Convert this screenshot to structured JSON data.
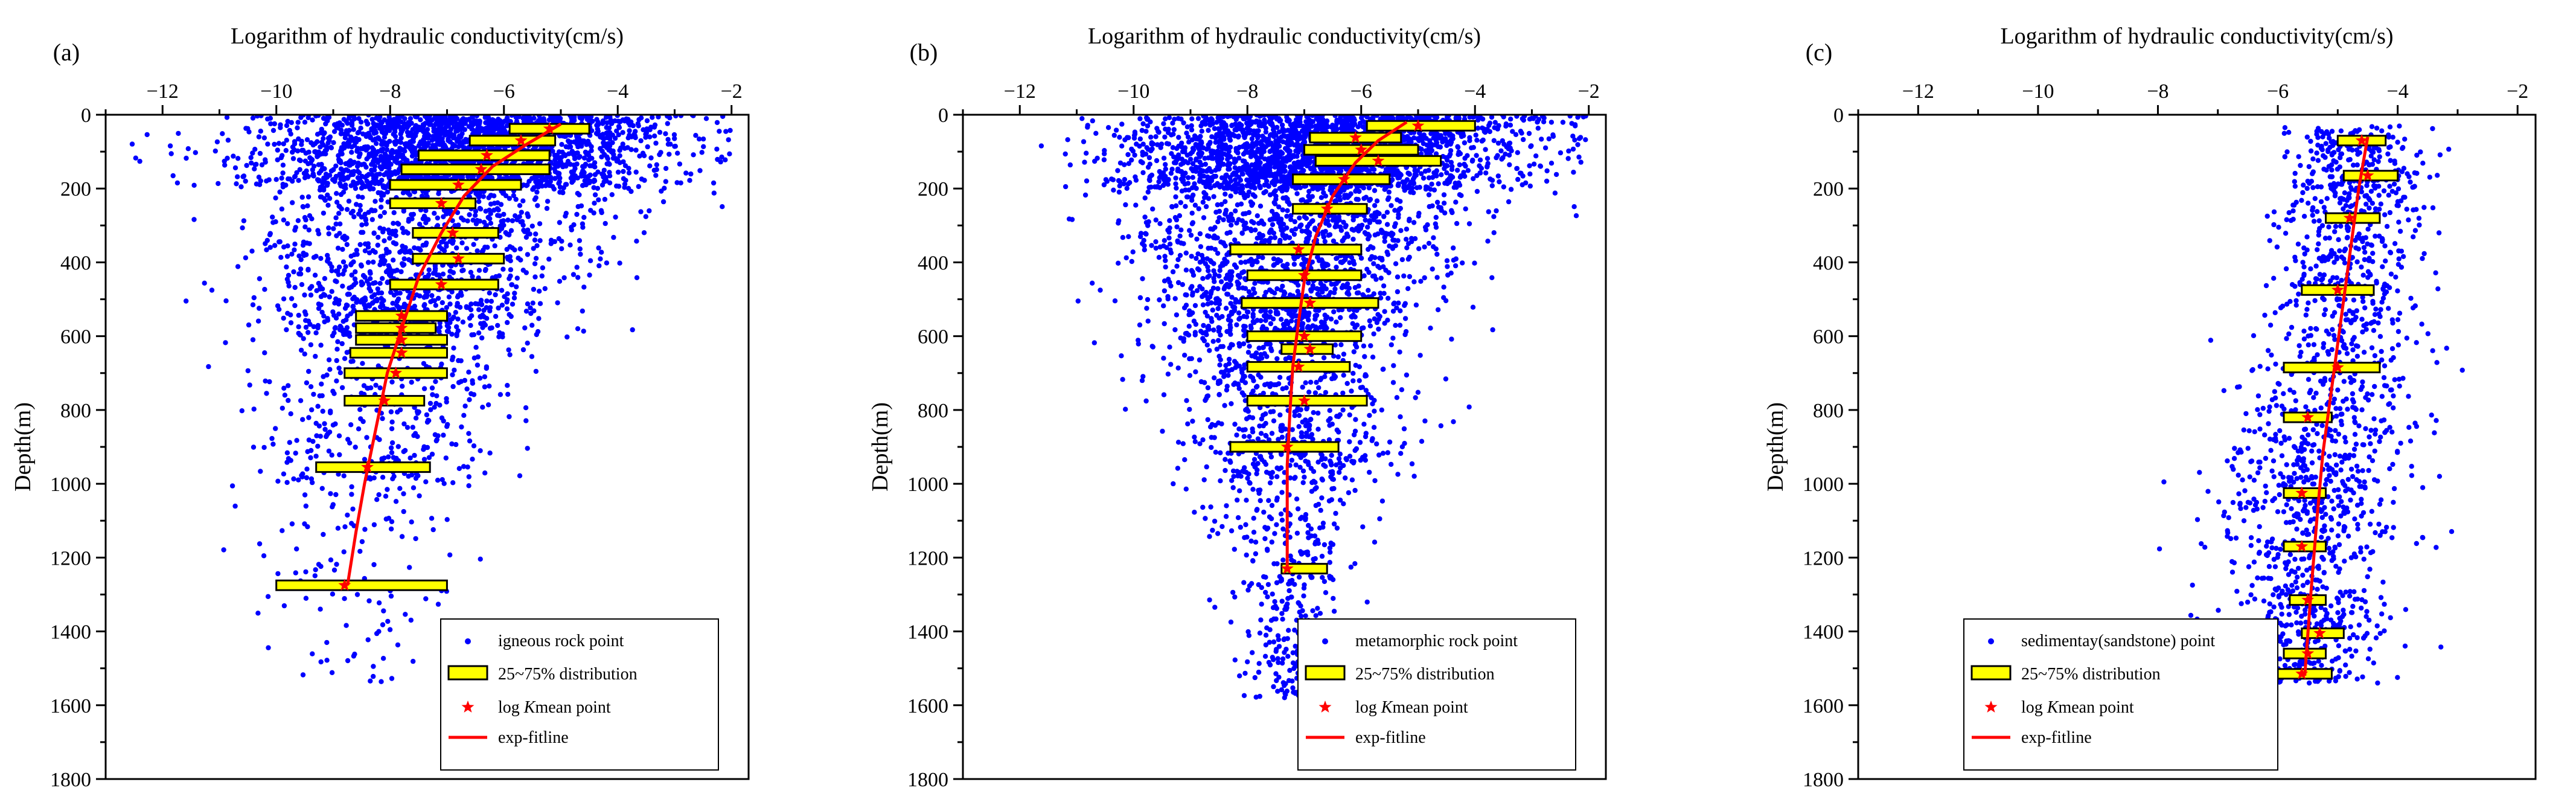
{
  "figure": {
    "panels": [
      {
        "panel_label": "(a)",
        "legend_labels": [
          "igneous rock point",
          "25~75% distribution",
          "mean point",
          "exp-fitline"
        ]
      },
      {
        "panel_label": "(b)",
        "legend_labels": [
          "metamorphic rock point",
          "25~75% distribution",
          "mean point",
          "exp-fitline"
        ]
      },
      {
        "panel_label": "(c)",
        "legend_labels": [
          "sedimentay(sandstone) point",
          "25~75% distribution",
          "mean point",
          "exp-fitline"
        ]
      }
    ],
    "legend_mean_prefix": "log ",
    "legend_mean_italic": "K"
  },
  "colors": {
    "points": "#0000ff",
    "iqr_box_fill": "#ffff00",
    "iqr_box_stroke": "#000000",
    "mean_marker": "#ff0000",
    "fit_line": "#ff0000"
  },
  "chart_data": [
    {
      "type": "scatter",
      "panel": "(a)",
      "title": "Logarithm of hydraulic conductivity(cm/s)",
      "xlabel": "Logarithm of hydraulic conductivity(cm/s)",
      "ylabel": "Depth(m)",
      "x_axis_position": "top",
      "y_axis_inverted": true,
      "xlim": [
        -13,
        -1.7
      ],
      "ylim": [
        0,
        1800
      ],
      "xticks": [
        -12,
        -10,
        -8,
        -6,
        -4,
        -2
      ],
      "yticks": [
        0,
        200,
        400,
        600,
        800,
        1000,
        1200,
        1400,
        1600,
        1800
      ],
      "legend_position": "bottom-right",
      "series": [
        {
          "name": "igneous rock point",
          "kind": "scatter",
          "note": "dense cloud of several thousand measured points, densest near the surface, spreading to about 1500 m depth",
          "profile": [
            [
              0,
              -6.5,
              1.8
            ],
            [
              200,
              -7.0,
              1.6
            ],
            [
              400,
              -7.4,
              1.4
            ],
            [
              600,
              -7.8,
              1.2
            ],
            [
              800,
              -8.0,
              1.1
            ],
            [
              1000,
              -8.3,
              1.1
            ],
            [
              1300,
              -8.5,
              1.2
            ],
            [
              1550,
              -8.5,
              1.0
            ]
          ]
        },
        {
          "name": "25~75% distribution",
          "kind": "box",
          "boxes": [
            {
              "depth": 38,
              "q1": -5.9,
              "q3": -4.5
            },
            {
              "depth": 70,
              "q1": -6.6,
              "q3": -5.1
            },
            {
              "depth": 110,
              "q1": -7.5,
              "q3": -5.2
            },
            {
              "depth": 148,
              "q1": -7.8,
              "q3": -5.2
            },
            {
              "depth": 190,
              "q1": -8.0,
              "q3": -5.7
            },
            {
              "depth": 240,
              "q1": -8.0,
              "q3": -6.5
            },
            {
              "depth": 320,
              "q1": -7.6,
              "q3": -6.1
            },
            {
              "depth": 390,
              "q1": -7.6,
              "q3": -6.0
            },
            {
              "depth": 460,
              "q1": -8.0,
              "q3": -6.1
            },
            {
              "depth": 545,
              "q1": -8.6,
              "q3": -7.0
            },
            {
              "depth": 578,
              "q1": -8.6,
              "q3": -7.2
            },
            {
              "depth": 610,
              "q1": -8.6,
              "q3": -7.0
            },
            {
              "depth": 645,
              "q1": -8.7,
              "q3": -7.0
            },
            {
              "depth": 700,
              "q1": -8.8,
              "q3": -7.0
            },
            {
              "depth": 775,
              "q1": -8.8,
              "q3": -7.4
            },
            {
              "depth": 955,
              "q1": -9.3,
              "q3": -7.3
            },
            {
              "depth": 1275,
              "q1": -10.0,
              "q3": -7.0
            }
          ]
        },
        {
          "name": "log K mean point",
          "kind": "marker",
          "points": [
            [
              -5.2,
              38
            ],
            [
              -5.7,
              70
            ],
            [
              -6.3,
              110
            ],
            [
              -6.4,
              148
            ],
            [
              -6.8,
              190
            ],
            [
              -7.1,
              240
            ],
            [
              -6.9,
              320
            ],
            [
              -6.8,
              390
            ],
            [
              -7.1,
              460
            ],
            [
              -7.8,
              545
            ],
            [
              -7.8,
              578
            ],
            [
              -7.8,
              610
            ],
            [
              -7.8,
              645
            ],
            [
              -7.9,
              700
            ],
            [
              -8.1,
              775
            ],
            [
              -8.4,
              955
            ],
            [
              -8.8,
              1275
            ]
          ]
        },
        {
          "name": "exp-fitline",
          "kind": "line",
          "points": [
            [
              -5.0,
              25
            ],
            [
              -5.6,
              80
            ],
            [
              -6.2,
              140
            ],
            [
              -6.7,
              220
            ],
            [
              -7.1,
              320
            ],
            [
              -7.5,
              440
            ],
            [
              -7.8,
              580
            ],
            [
              -8.05,
              700
            ],
            [
              -8.25,
              850
            ],
            [
              -8.45,
              1000
            ],
            [
              -8.6,
              1130
            ],
            [
              -8.75,
              1275
            ]
          ]
        }
      ]
    },
    {
      "type": "scatter",
      "panel": "(b)",
      "title": "Logarithm of hydraulic conductivity(cm/s)",
      "xlabel": "Logarithm of hydraulic conductivity(cm/s)",
      "ylabel": "Depth(m)",
      "x_axis_position": "top",
      "y_axis_inverted": true,
      "xlim": [
        -13,
        -1.7
      ],
      "ylim": [
        0,
        1800
      ],
      "xticks": [
        -12,
        -10,
        -8,
        -6,
        -4,
        -2
      ],
      "yticks": [
        0,
        200,
        400,
        600,
        800,
        1000,
        1200,
        1400,
        1600,
        1800
      ],
      "legend_position": "bottom-right",
      "series": [
        {
          "name": "metamorphic rock point",
          "kind": "scatter",
          "note": "dense cloud of several thousand measured points concentrated near the surface and narrowing with depth to about 1580 m",
          "profile": [
            [
              0,
              -6.3,
              1.8
            ],
            [
              200,
              -7.0,
              1.5
            ],
            [
              400,
              -7.2,
              1.3
            ],
            [
              600,
              -7.4,
              1.1
            ],
            [
              800,
              -7.3,
              1.0
            ],
            [
              1000,
              -7.3,
              0.8
            ],
            [
              1200,
              -7.3,
              0.6
            ],
            [
              1580,
              -7.3,
              0.3
            ]
          ]
        },
        {
          "name": "25~75% distribution",
          "kind": "box",
          "boxes": [
            {
              "depth": 30,
              "q1": -5.9,
              "q3": -4.0
            },
            {
              "depth": 62,
              "q1": -6.9,
              "q3": -5.3
            },
            {
              "depth": 95,
              "q1": -7.0,
              "q3": -5.0
            },
            {
              "depth": 125,
              "q1": -6.8,
              "q3": -4.6
            },
            {
              "depth": 175,
              "q1": -7.2,
              "q3": -5.5
            },
            {
              "depth": 255,
              "q1": -7.2,
              "q3": -5.9
            },
            {
              "depth": 365,
              "q1": -8.3,
              "q3": -6.0
            },
            {
              "depth": 435,
              "q1": -8.0,
              "q3": -6.0
            },
            {
              "depth": 510,
              "q1": -8.1,
              "q3": -5.7
            },
            {
              "depth": 600,
              "q1": -8.0,
              "q3": -6.0
            },
            {
              "depth": 635,
              "q1": -7.4,
              "q3": -6.5
            },
            {
              "depth": 683,
              "q1": -8.0,
              "q3": -6.2
            },
            {
              "depth": 775,
              "q1": -8.0,
              "q3": -5.9
            },
            {
              "depth": 900,
              "q1": -8.3,
              "q3": -6.4
            },
            {
              "depth": 1230,
              "q1": -7.4,
              "q3": -6.6
            }
          ]
        },
        {
          "name": "log K mean point",
          "kind": "marker",
          "points": [
            [
              -5.0,
              30
            ],
            [
              -6.1,
              62
            ],
            [
              -6.0,
              95
            ],
            [
              -5.7,
              125
            ],
            [
              -6.3,
              175
            ],
            [
              -6.6,
              255
            ],
            [
              -7.1,
              365
            ],
            [
              -7.0,
              435
            ],
            [
              -6.9,
              510
            ],
            [
              -7.0,
              600
            ],
            [
              -6.9,
              635
            ],
            [
              -7.1,
              683
            ],
            [
              -7.0,
              775
            ],
            [
              -7.3,
              900
            ],
            [
              -7.3,
              1230
            ]
          ]
        },
        {
          "name": "exp-fitline",
          "kind": "line",
          "points": [
            [
              -5.2,
              20
            ],
            [
              -5.7,
              70
            ],
            [
              -6.1,
              130
            ],
            [
              -6.5,
              220
            ],
            [
              -6.8,
              330
            ],
            [
              -7.0,
              450
            ],
            [
              -7.1,
              560
            ],
            [
              -7.2,
              680
            ],
            [
              -7.25,
              800
            ],
            [
              -7.3,
              950
            ],
            [
              -7.3,
              1100
            ],
            [
              -7.3,
              1230
            ]
          ]
        }
      ]
    },
    {
      "type": "scatter",
      "panel": "(c)",
      "title": "Logarithm of hydraulic conductivity(cm/s)",
      "xlabel": "Logarithm of hydraulic conductivity(cm/s)",
      "ylabel": "Depth(m)",
      "x_axis_position": "top",
      "y_axis_inverted": true,
      "xlim": [
        -13,
        -1.7
      ],
      "ylim": [
        0,
        1800
      ],
      "xticks": [
        -12,
        -10,
        -8,
        -6,
        -4,
        -2
      ],
      "yticks": [
        0,
        200,
        400,
        600,
        800,
        1000,
        1200,
        1400,
        1600,
        1800
      ],
      "legend_position": "bottom-left",
      "series": [
        {
          "name": "sedimentay(sandstone) point",
          "kind": "scatter",
          "note": "narrow band of points between about -7 and -3 spanning depths from about 30 m to 1540 m",
          "profile": [
            [
              30,
              -4.6,
              0.55
            ],
            [
              300,
              -4.8,
              0.6
            ],
            [
              600,
              -5.0,
              0.7
            ],
            [
              900,
              -5.3,
              0.75
            ],
            [
              1200,
              -5.5,
              0.75
            ],
            [
              1540,
              -5.6,
              0.6
            ]
          ]
        },
        {
          "name": "25~75% distribution",
          "kind": "box",
          "boxes": [
            {
              "depth": 70,
              "q1": -5.0,
              "q3": -4.2
            },
            {
              "depth": 165,
              "q1": -4.9,
              "q3": -4.0
            },
            {
              "depth": 280,
              "q1": -5.2,
              "q3": -4.3
            },
            {
              "depth": 475,
              "q1": -5.6,
              "q3": -4.4
            },
            {
              "depth": 685,
              "q1": -5.9,
              "q3": -4.3
            },
            {
              "depth": 820,
              "q1": -5.9,
              "q3": -5.1
            },
            {
              "depth": 1025,
              "q1": -5.9,
              "q3": -5.2
            },
            {
              "depth": 1170,
              "q1": -5.9,
              "q3": -5.2
            },
            {
              "depth": 1315,
              "q1": -5.8,
              "q3": -5.2
            },
            {
              "depth": 1405,
              "q1": -5.6,
              "q3": -4.9
            },
            {
              "depth": 1460,
              "q1": -5.9,
              "q3": -5.2
            },
            {
              "depth": 1515,
              "q1": -6.0,
              "q3": -5.1
            }
          ]
        },
        {
          "name": "log K mean point",
          "kind": "marker",
          "points": [
            [
              -4.6,
              70
            ],
            [
              -4.5,
              165
            ],
            [
              -4.8,
              280
            ],
            [
              -5.0,
              475
            ],
            [
              -5.0,
              685
            ],
            [
              -5.5,
              820
            ],
            [
              -5.6,
              1025
            ],
            [
              -5.6,
              1170
            ],
            [
              -5.5,
              1315
            ],
            [
              -5.3,
              1405
            ],
            [
              -5.5,
              1460
            ],
            [
              -5.6,
              1515
            ]
          ]
        },
        {
          "name": "exp-fitline",
          "kind": "line",
          "points": [
            [
              -4.5,
              60
            ],
            [
              -4.65,
              200
            ],
            [
              -4.8,
              380
            ],
            [
              -4.95,
              560
            ],
            [
              -5.1,
              740
            ],
            [
              -5.25,
              920
            ],
            [
              -5.35,
              1100
            ],
            [
              -5.45,
              1300
            ],
            [
              -5.55,
              1520
            ]
          ]
        }
      ]
    }
  ]
}
